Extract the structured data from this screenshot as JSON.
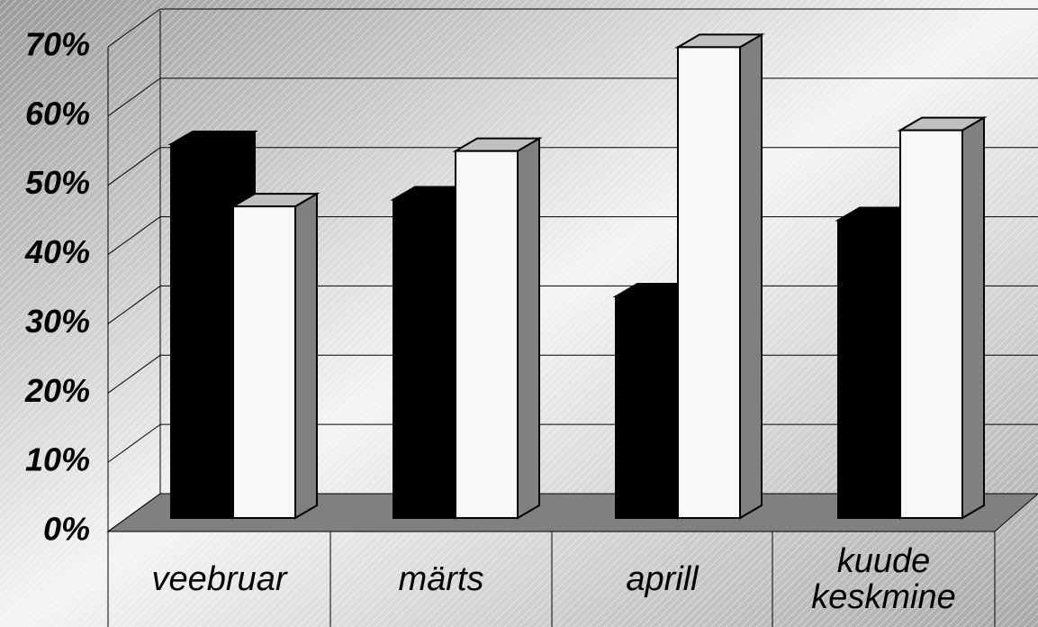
{
  "chart_data": {
    "type": "bar3d",
    "categories": [
      "veebruar",
      "märts",
      "aprill",
      "kuude keskmine"
    ],
    "series": [
      {
        "color": "#000000",
        "values": [
          54,
          46,
          32,
          43
        ]
      },
      {
        "color": "#f8f8f8",
        "values": [
          45,
          53,
          68,
          56
        ]
      }
    ],
    "ylim": [
      0,
      70
    ],
    "yticks": [
      {
        "value": 0,
        "label": "0%"
      },
      {
        "value": 10,
        "label": "10%"
      },
      {
        "value": 20,
        "label": "20%"
      },
      {
        "value": 30,
        "label": "30%"
      },
      {
        "value": 40,
        "label": "40%"
      },
      {
        "value": 50,
        "label": "50%"
      },
      {
        "value": 60,
        "label": "60%"
      },
      {
        "value": 70,
        "label": "70%"
      }
    ],
    "grid": true
  }
}
